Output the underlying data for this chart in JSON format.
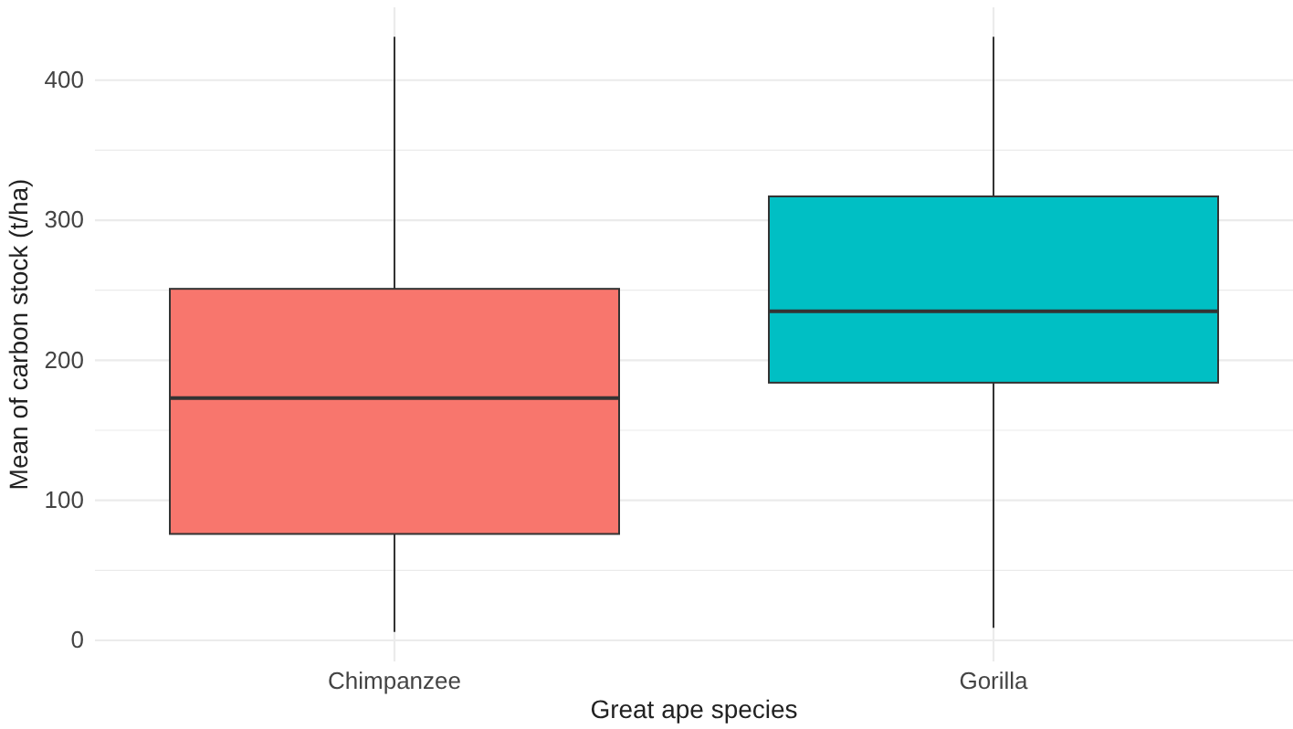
{
  "chart_data": {
    "type": "box",
    "xlabel": "Great ape species",
    "ylabel": "Mean of carbon stock (t/ha)",
    "categories": [
      "Chimpanzee",
      "Gorilla"
    ],
    "colors": [
      "#f8766d",
      "#00bfc4"
    ],
    "boxes": [
      {
        "low": 6,
        "q1": 76,
        "median": 173,
        "q3": 251,
        "high": 431
      },
      {
        "low": 9,
        "q1": 184,
        "median": 235,
        "q3": 317,
        "high": 431
      }
    ],
    "ylim": [
      -15,
      452
    ],
    "yticks": [
      0,
      {
        "value": 50,
        "label": null
      },
      100,
      {
        "value": 150,
        "label": null
      },
      200,
      {
        "value": 250,
        "label": null
      },
      300,
      {
        "value": 350,
        "label": null
      },
      400
    ],
    "grid": true
  }
}
